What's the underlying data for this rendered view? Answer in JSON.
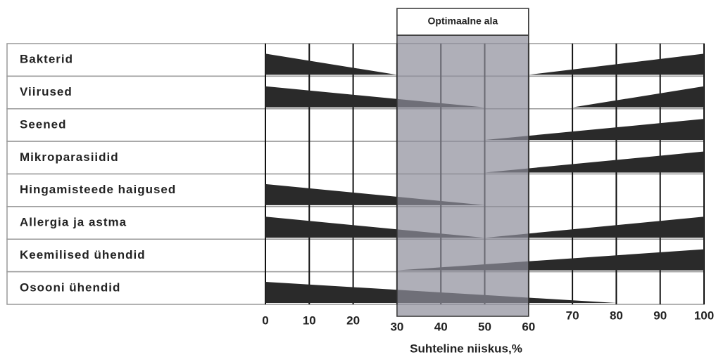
{
  "chart_data": {
    "type": "wedge",
    "annotation": "Optimaalne ala",
    "x_label": "Suhteline niiskus,%",
    "categories": [
      "Bakterid",
      "Viirused",
      "Seened",
      "Mikroparasiidid",
      "Hingamisteede haigused",
      "Allergia ja astma",
      "Keemilised ühendid",
      "Osooni ühendid"
    ],
    "series": [
      {
        "name": "decrease_to",
        "color": "#2a2a2a",
        "values": [
          30,
          50,
          null,
          null,
          50,
          50,
          null,
          80
        ]
      },
      {
        "name": "increase_from",
        "color": "#2a2a2a",
        "values": [
          60,
          70,
          50,
          50,
          null,
          50,
          30,
          null
        ]
      }
    ],
    "optimal_range": [
      30,
      60
    ],
    "xlim": [
      0,
      100
    ],
    "xticks": [
      0,
      10,
      20,
      30,
      40,
      50,
      60,
      70,
      80,
      90,
      100
    ],
    "grid": true
  }
}
